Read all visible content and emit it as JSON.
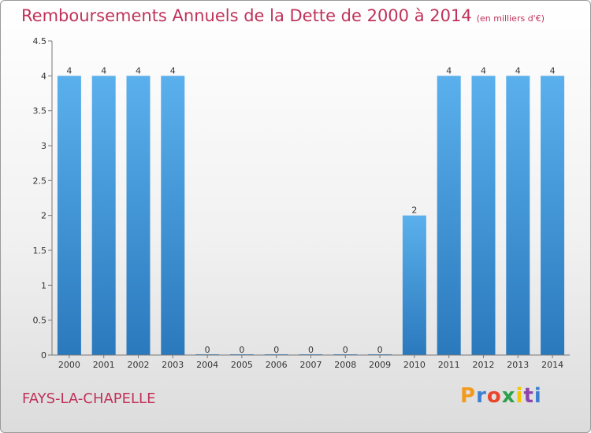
{
  "header": {
    "title": "Remboursements Annuels de la Dette de 2000 à 2014",
    "units": "(en milliers d'€)"
  },
  "footer": {
    "commune": "FAYS-LA-CHAPELLE",
    "brand": "Proxiti",
    "brand_colors": [
      "#f39a1e",
      "#3b7fd0",
      "#e8452b",
      "#2aa24a",
      "#f2c500",
      "#8e44ad",
      "#3b7fd0"
    ]
  },
  "chart_data": {
    "type": "bar",
    "title": "Remboursements Annuels de la Dette de 2000 à 2014",
    "xlabel": "",
    "ylabel": "",
    "categories": [
      "2000",
      "2001",
      "2002",
      "2003",
      "2004",
      "2005",
      "2006",
      "2007",
      "2008",
      "2009",
      "2010",
      "2011",
      "2012",
      "2013",
      "2014"
    ],
    "values": [
      4,
      4,
      4,
      4,
      0,
      0,
      0,
      0,
      0,
      0,
      2,
      4,
      4,
      4,
      4
    ],
    "bar_labels": [
      "4",
      "4",
      "4",
      "4",
      "0",
      "0",
      "0",
      "0",
      "0",
      "0",
      "2",
      "4",
      "4",
      "4",
      "4"
    ],
    "ylim": [
      0,
      4.5
    ],
    "yticks": [
      "0",
      "0.5",
      "1",
      "1.5",
      "2",
      "2.5",
      "3",
      "3.5",
      "4",
      "4.5"
    ],
    "ytick_values": [
      0,
      0.5,
      1,
      1.5,
      2,
      2.5,
      3,
      3.5,
      4,
      4.5
    ],
    "bar_color": "#3a8fd6"
  }
}
